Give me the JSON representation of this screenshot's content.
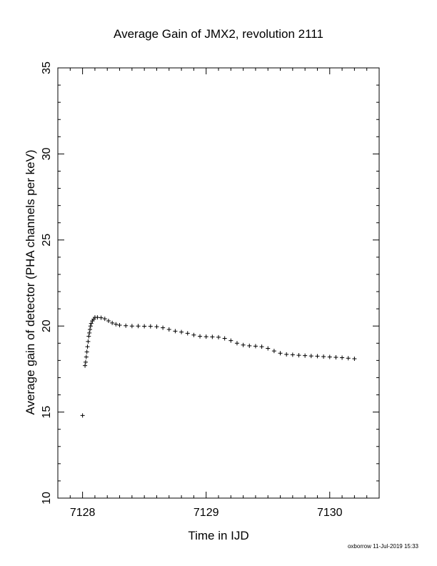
{
  "chart_data": {
    "type": "scatter",
    "title": "Average Gain of JMX2, revolution 2111",
    "xlabel": "Time in IJD",
    "ylabel": "Average gain of detector (PHA channels per keV)",
    "xlim": [
      7127.8,
      7130.4
    ],
    "ylim": [
      10,
      35
    ],
    "xticks": [
      7128,
      7129,
      7130
    ],
    "yticks": [
      10,
      15,
      20,
      25,
      30,
      35
    ],
    "marker": "plus",
    "grid": false,
    "series": [
      {
        "points": [
          [
            7128.0,
            14.8
          ],
          [
            7128.02,
            17.7
          ],
          [
            7128.025,
            17.9
          ],
          [
            7128.03,
            18.2
          ],
          [
            7128.035,
            18.5
          ],
          [
            7128.04,
            18.8
          ],
          [
            7128.045,
            19.1
          ],
          [
            7128.05,
            19.4
          ],
          [
            7128.055,
            19.6
          ],
          [
            7128.06,
            19.8
          ],
          [
            7128.065,
            20.0
          ],
          [
            7128.07,
            20.15
          ],
          [
            7128.08,
            20.3
          ],
          [
            7128.09,
            20.4
          ],
          [
            7128.1,
            20.5
          ],
          [
            7128.12,
            20.5
          ],
          [
            7128.15,
            20.48
          ],
          [
            7128.18,
            20.42
          ],
          [
            7128.21,
            20.3
          ],
          [
            7128.24,
            20.18
          ],
          [
            7128.27,
            20.1
          ],
          [
            7128.3,
            20.05
          ],
          [
            7128.35,
            20.02
          ],
          [
            7128.4,
            20.0
          ],
          [
            7128.45,
            20.0
          ],
          [
            7128.5,
            19.99
          ],
          [
            7128.55,
            19.98
          ],
          [
            7128.6,
            19.96
          ],
          [
            7128.65,
            19.9
          ],
          [
            7128.7,
            19.8
          ],
          [
            7128.75,
            19.7
          ],
          [
            7128.8,
            19.65
          ],
          [
            7128.85,
            19.58
          ],
          [
            7128.9,
            19.48
          ],
          [
            7128.95,
            19.4
          ],
          [
            7129.0,
            19.38
          ],
          [
            7129.05,
            19.37
          ],
          [
            7129.1,
            19.35
          ],
          [
            7129.15,
            19.28
          ],
          [
            7129.2,
            19.15
          ],
          [
            7129.25,
            19.0
          ],
          [
            7129.3,
            18.9
          ],
          [
            7129.35,
            18.85
          ],
          [
            7129.4,
            18.83
          ],
          [
            7129.45,
            18.8
          ],
          [
            7129.5,
            18.7
          ],
          [
            7129.55,
            18.55
          ],
          [
            7129.6,
            18.42
          ],
          [
            7129.65,
            18.35
          ],
          [
            7129.7,
            18.33
          ],
          [
            7129.75,
            18.3
          ],
          [
            7129.8,
            18.28
          ],
          [
            7129.85,
            18.26
          ],
          [
            7129.9,
            18.25
          ],
          [
            7129.95,
            18.22
          ],
          [
            7130.0,
            18.2
          ],
          [
            7130.05,
            18.18
          ],
          [
            7130.1,
            18.16
          ],
          [
            7130.15,
            18.13
          ],
          [
            7130.2,
            18.1
          ]
        ]
      }
    ]
  },
  "footer": "oxborrow 11-Jul-2019 15:33"
}
